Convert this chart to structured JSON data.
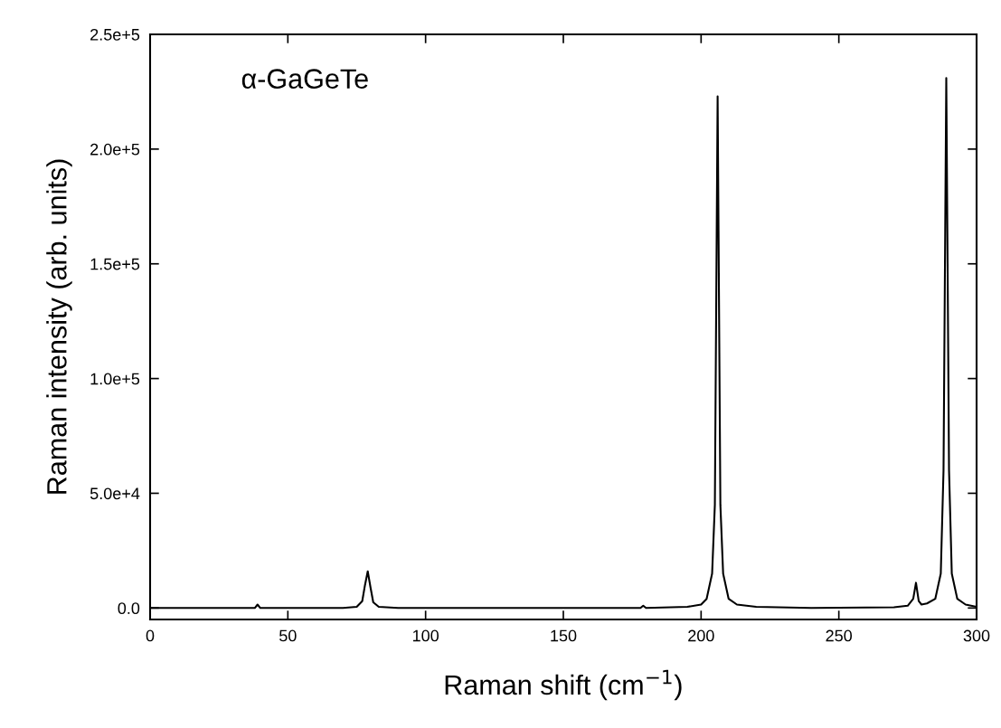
{
  "chart_data": {
    "type": "line",
    "xlabel": "Raman shift (cm$^{−1}$)",
    "ylabel": "Raman intensity (arb. units)",
    "annotations": [
      "α-GaGeTe"
    ],
    "x": [
      0,
      30,
      38,
      39,
      40,
      70,
      75,
      77,
      78,
      79,
      80,
      81,
      83,
      90,
      170,
      178,
      179,
      180,
      195,
      200,
      202,
      204,
      205,
      206,
      207,
      208,
      210,
      213,
      220,
      240,
      270,
      275,
      277,
      278,
      279,
      280,
      282,
      285,
      287,
      288,
      289,
      290,
      291,
      293,
      296,
      300
    ],
    "series": [
      {
        "color": "#000000",
        "values": [
          0,
          0,
          0,
          1500,
          0,
          0,
          500,
          3000,
          10000,
          16000,
          9000,
          2500,
          500,
          0,
          0,
          0,
          1000,
          0,
          500,
          1500,
          4000,
          15000,
          45000,
          223000,
          45000,
          15000,
          4000,
          1500,
          500,
          0,
          300,
          1000,
          4000,
          11000,
          3000,
          1500,
          2000,
          4000,
          15000,
          60000,
          231000,
          60000,
          15000,
          4000,
          1500,
          500
        ]
      }
    ],
    "xlim": [
      0,
      300
    ],
    "xticks": [
      0,
      50,
      100,
      150,
      200,
      250,
      300
    ],
    "ylim": [
      -5000,
      250000
    ],
    "yticks": [
      {
        "value": 0,
        "label": "0.0"
      },
      {
        "value": 50000,
        "label": "5.0e+4"
      },
      {
        "value": 100000,
        "label": "1.0e+5"
      },
      {
        "value": 150000,
        "label": "1.5e+5"
      },
      {
        "value": 200000,
        "label": "2.0e+5"
      },
      {
        "value": 250000,
        "label": "2.5e+5"
      }
    ],
    "grid": false,
    "legend": false,
    "marker": "none",
    "line_style": "solid"
  }
}
